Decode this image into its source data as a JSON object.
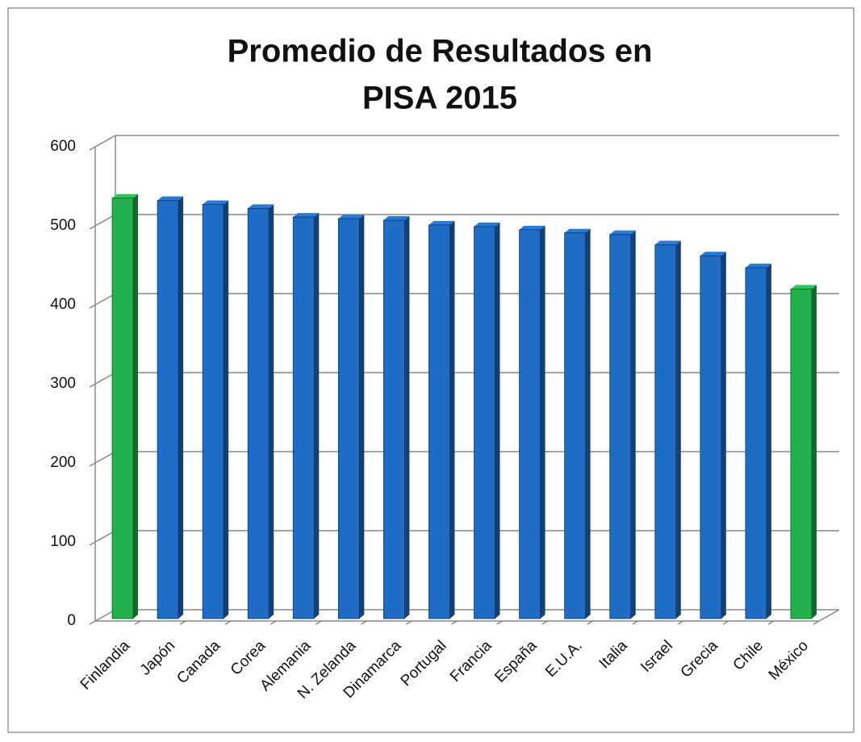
{
  "chart_data": {
    "type": "bar",
    "title": [
      "Promedio de Resultados  en",
      "PISA 2015"
    ],
    "categories": [
      "Finlandia",
      "Japón",
      "Canada",
      "Corea",
      "Alemania",
      "N. Zelanda",
      "Dinamarca",
      "Portugal",
      "Francia",
      "España",
      "E.U.A.",
      "Italia",
      "Israel",
      "Grecia",
      "Chile",
      "México"
    ],
    "values": [
      531,
      528,
      523,
      518,
      507,
      505,
      503,
      497,
      495,
      491,
      487,
      485,
      472,
      458,
      443,
      416
    ],
    "colors": [
      "#21b04b",
      "#1f6cc4",
      "#1f6cc4",
      "#1f6cc4",
      "#1f6cc4",
      "#1f6cc4",
      "#1f6cc4",
      "#1f6cc4",
      "#1f6cc4",
      "#1f6cc4",
      "#1f6cc4",
      "#1f6cc4",
      "#1f6cc4",
      "#1f6cc4",
      "#1f6cc4",
      "#21b04b"
    ],
    "ylim": [
      0,
      600
    ],
    "yticks": [
      0,
      100,
      200,
      300,
      400,
      500,
      600
    ],
    "grid": true
  }
}
